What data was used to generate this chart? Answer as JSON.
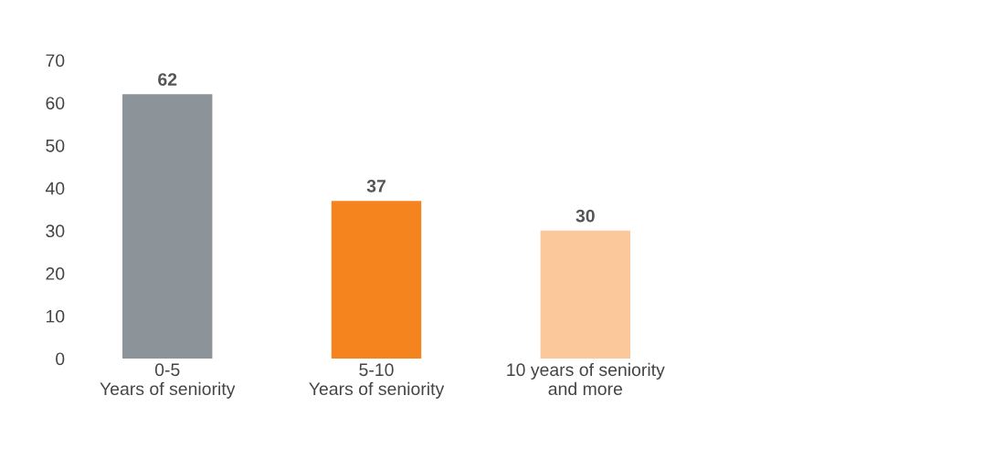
{
  "chart_data": {
    "type": "bar",
    "categories": [
      "0-5\nYears of seniority",
      "5-10\nYears of seniority",
      "10 years of seniority\nand more"
    ],
    "values": [
      62,
      37,
      30
    ],
    "colors": [
      "#8c9399",
      "#f5841f",
      "#fbc89b"
    ],
    "ylim": [
      0,
      70
    ],
    "yticks": [
      0,
      10,
      20,
      30,
      40,
      50,
      60,
      70
    ],
    "data_labels": true,
    "grid": false,
    "legend": false
  }
}
